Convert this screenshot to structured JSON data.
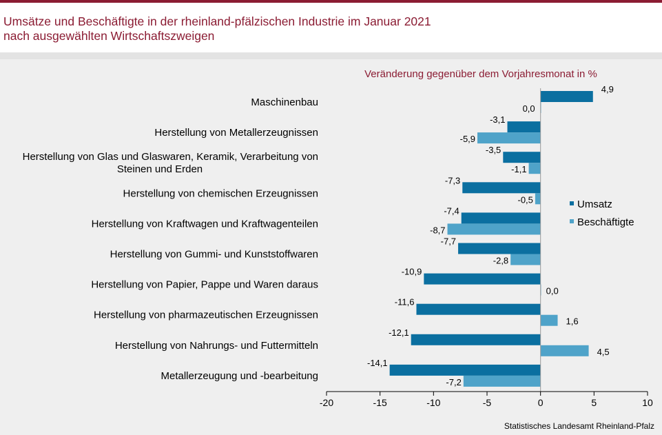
{
  "header": {
    "title_line1": "Umsätze und Beschäftigte in der rheinland-pfälzischen Industrie im Januar 2021",
    "title_line2": "nach ausgewählten Wirtschaftszweigen"
  },
  "colors": {
    "accent": "#8b1c33",
    "umsatz": "#0b6fa0",
    "beschaeftigte": "#4fa3c9"
  },
  "chart_data": {
    "type": "bar",
    "orientation": "horizontal",
    "subtitle": "Veränderung gegenüber dem Vorjahresmonat in %",
    "categories": [
      [
        "Maschinenbau"
      ],
      [
        "Herstellung von Metallerzeugnissen"
      ],
      [
        "Herstellung von Glas und Glaswaren, Keramik, Verarbeitung von",
        "Steinen und Erden"
      ],
      [
        "Herstellung von chemischen Erzeugnissen"
      ],
      [
        "Herstellung von Kraftwagen und Kraftwagenteilen"
      ],
      [
        "Herstellung von Gummi- und Kunststoffwaren"
      ],
      [
        "Herstellung von Papier, Pappe und Waren daraus"
      ],
      [
        "Herstellung von pharmazeutischen Erzeugnissen"
      ],
      [
        "Herstellung von Nahrungs- und Futtermitteln"
      ],
      [
        "Metallerzeugung und -bearbeitung"
      ]
    ],
    "series": [
      {
        "name": "Umsatz",
        "values": [
          4.9,
          -3.1,
          -3.5,
          -7.3,
          -7.4,
          -7.7,
          -10.9,
          -11.6,
          -12.1,
          -14.1
        ],
        "labels": [
          "4,9",
          "-3,1",
          "-3,5",
          "-7,3",
          "-7,4",
          "-7,7",
          "-10,9",
          "-11,6",
          "-12,1",
          "-14,1"
        ]
      },
      {
        "name": "Beschäftigte",
        "values": [
          0.0,
          -5.9,
          -1.1,
          -0.5,
          -8.7,
          -2.8,
          0.0,
          1.6,
          4.5,
          -7.2
        ],
        "labels": [
          "0,0",
          "-5,9",
          "-1,1",
          "-0,5",
          "-8,7",
          "-2,8",
          "0,0",
          "1,6",
          "4,5",
          "-7,2"
        ]
      }
    ],
    "xlim": [
      -20,
      10
    ],
    "xticks": [
      -20,
      -15,
      -10,
      -5,
      0,
      5,
      10
    ],
    "xtick_labels": [
      "-20",
      "-15",
      "-10",
      "-5",
      "0",
      "5",
      "10"
    ],
    "grid": false,
    "legend_position": "right"
  },
  "source": "Statistisches Landesamt Rheinland-Pfalz"
}
